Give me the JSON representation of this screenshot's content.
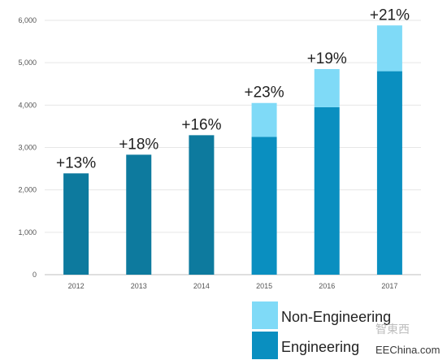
{
  "chart_data": {
    "type": "bar",
    "stacked": true,
    "categories": [
      "2012",
      "2013",
      "2014",
      "2015",
      "2016",
      "2017"
    ],
    "series": [
      {
        "name": "Engineering",
        "color_early": "#0d7a9e",
        "color": "#0a8fc0",
        "values": [
          2390,
          2830,
          3290,
          3250,
          3950,
          4800
        ]
      },
      {
        "name": "Non-Engineering",
        "color": "#7fdaf7",
        "values": [
          0,
          0,
          0,
          800,
          900,
          1080
        ]
      }
    ],
    "growth_labels": [
      "+13%",
      "+18%",
      "+16%",
      "+23%",
      "+19%",
      "+21%"
    ],
    "yticks": [
      "0",
      "1,000",
      "2,000",
      "3,000",
      "4,000",
      "5,000",
      "6,000"
    ],
    "ylim": [
      0,
      6000
    ],
    "grid": true,
    "legend_position": "bottom-right",
    "title": "",
    "xlabel": "",
    "ylabel": ""
  },
  "watermark": {
    "text": "EEChina.com",
    "chinese": "智東西"
  }
}
